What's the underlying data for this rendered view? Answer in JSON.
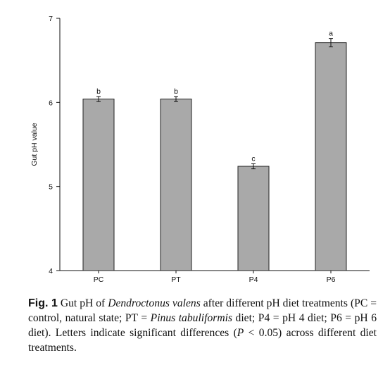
{
  "chart_data": {
    "type": "bar",
    "categories": [
      "PC",
      "PT",
      "P4",
      "P6"
    ],
    "values": [
      6.04,
      6.04,
      5.24,
      6.71
    ],
    "errors": [
      0.03,
      0.03,
      0.03,
      0.05
    ],
    "significance": [
      "b",
      "b",
      "c",
      "a"
    ],
    "ylabel": "Gut pH value",
    "xlabel": "",
    "ylim": [
      4,
      7
    ],
    "yticks": [
      4,
      5,
      6,
      7
    ],
    "bar_color": "#a9a9a9",
    "grid": false
  },
  "caption": {
    "label": "Fig. 1",
    "segments": [
      {
        "text": "  Gut pH of ",
        "italic": false
      },
      {
        "text": "Dendroctonus valens",
        "italic": true
      },
      {
        "text": " after different pH diet treatments (PC = control, natural state; PT = ",
        "italic": false
      },
      {
        "text": "Pinus tabuliformis",
        "italic": true
      },
      {
        "text": " diet; P4 = pH 4 diet; P6 = pH 6 diet). Letters indicate significant differences (",
        "italic": false
      },
      {
        "text": "P",
        "italic": true
      },
      {
        "text": " < 0.05) across different diet treatments.",
        "italic": false
      }
    ]
  }
}
